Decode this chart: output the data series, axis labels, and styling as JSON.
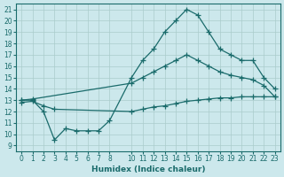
{
  "xlabel": "Humidex (Indice chaleur)",
  "bg_color": "#cce8ec",
  "grid_color": "#aacccc",
  "line_color": "#1a6b6b",
  "xlim": [
    -0.5,
    23.5
  ],
  "ylim": [
    8.5,
    21.5
  ],
  "yticks": [
    9,
    10,
    11,
    12,
    13,
    14,
    15,
    16,
    17,
    18,
    19,
    20,
    21
  ],
  "xticks": [
    0,
    1,
    2,
    3,
    4,
    5,
    6,
    7,
    8,
    10,
    11,
    12,
    13,
    14,
    15,
    16,
    17,
    18,
    19,
    20,
    21,
    22,
    23
  ],
  "line_peak_x": [
    0,
    1,
    2,
    3,
    4,
    5,
    6,
    7,
    8,
    10,
    11,
    12,
    13,
    14,
    15,
    16,
    17,
    18,
    19,
    20,
    21,
    22,
    23
  ],
  "line_peak_y": [
    13.0,
    13.0,
    12.0,
    9.5,
    10.5,
    10.3,
    10.3,
    10.3,
    11.2,
    15.0,
    16.5,
    17.5,
    19.0,
    20.0,
    21.0,
    20.5,
    19.0,
    17.5,
    17.0,
    16.5,
    16.5,
    15.0,
    14.0
  ],
  "line_mid_x": [
    0,
    1,
    10,
    11,
    12,
    13,
    14,
    15,
    16,
    17,
    18,
    19,
    20,
    21,
    22,
    23
  ],
  "line_mid_y": [
    13.0,
    13.1,
    14.5,
    15.0,
    15.5,
    16.0,
    16.5,
    17.0,
    16.5,
    16.0,
    15.5,
    15.2,
    15.0,
    14.8,
    14.3,
    13.3
  ],
  "line_flat_x": [
    0,
    1,
    2,
    3,
    10,
    11,
    12,
    13,
    14,
    15,
    16,
    17,
    18,
    19,
    20,
    21,
    22,
    23
  ],
  "line_flat_y": [
    12.8,
    12.9,
    12.5,
    12.2,
    12.0,
    12.2,
    12.4,
    12.5,
    12.7,
    12.9,
    13.0,
    13.1,
    13.2,
    13.2,
    13.3,
    13.3,
    13.3,
    13.3
  ]
}
